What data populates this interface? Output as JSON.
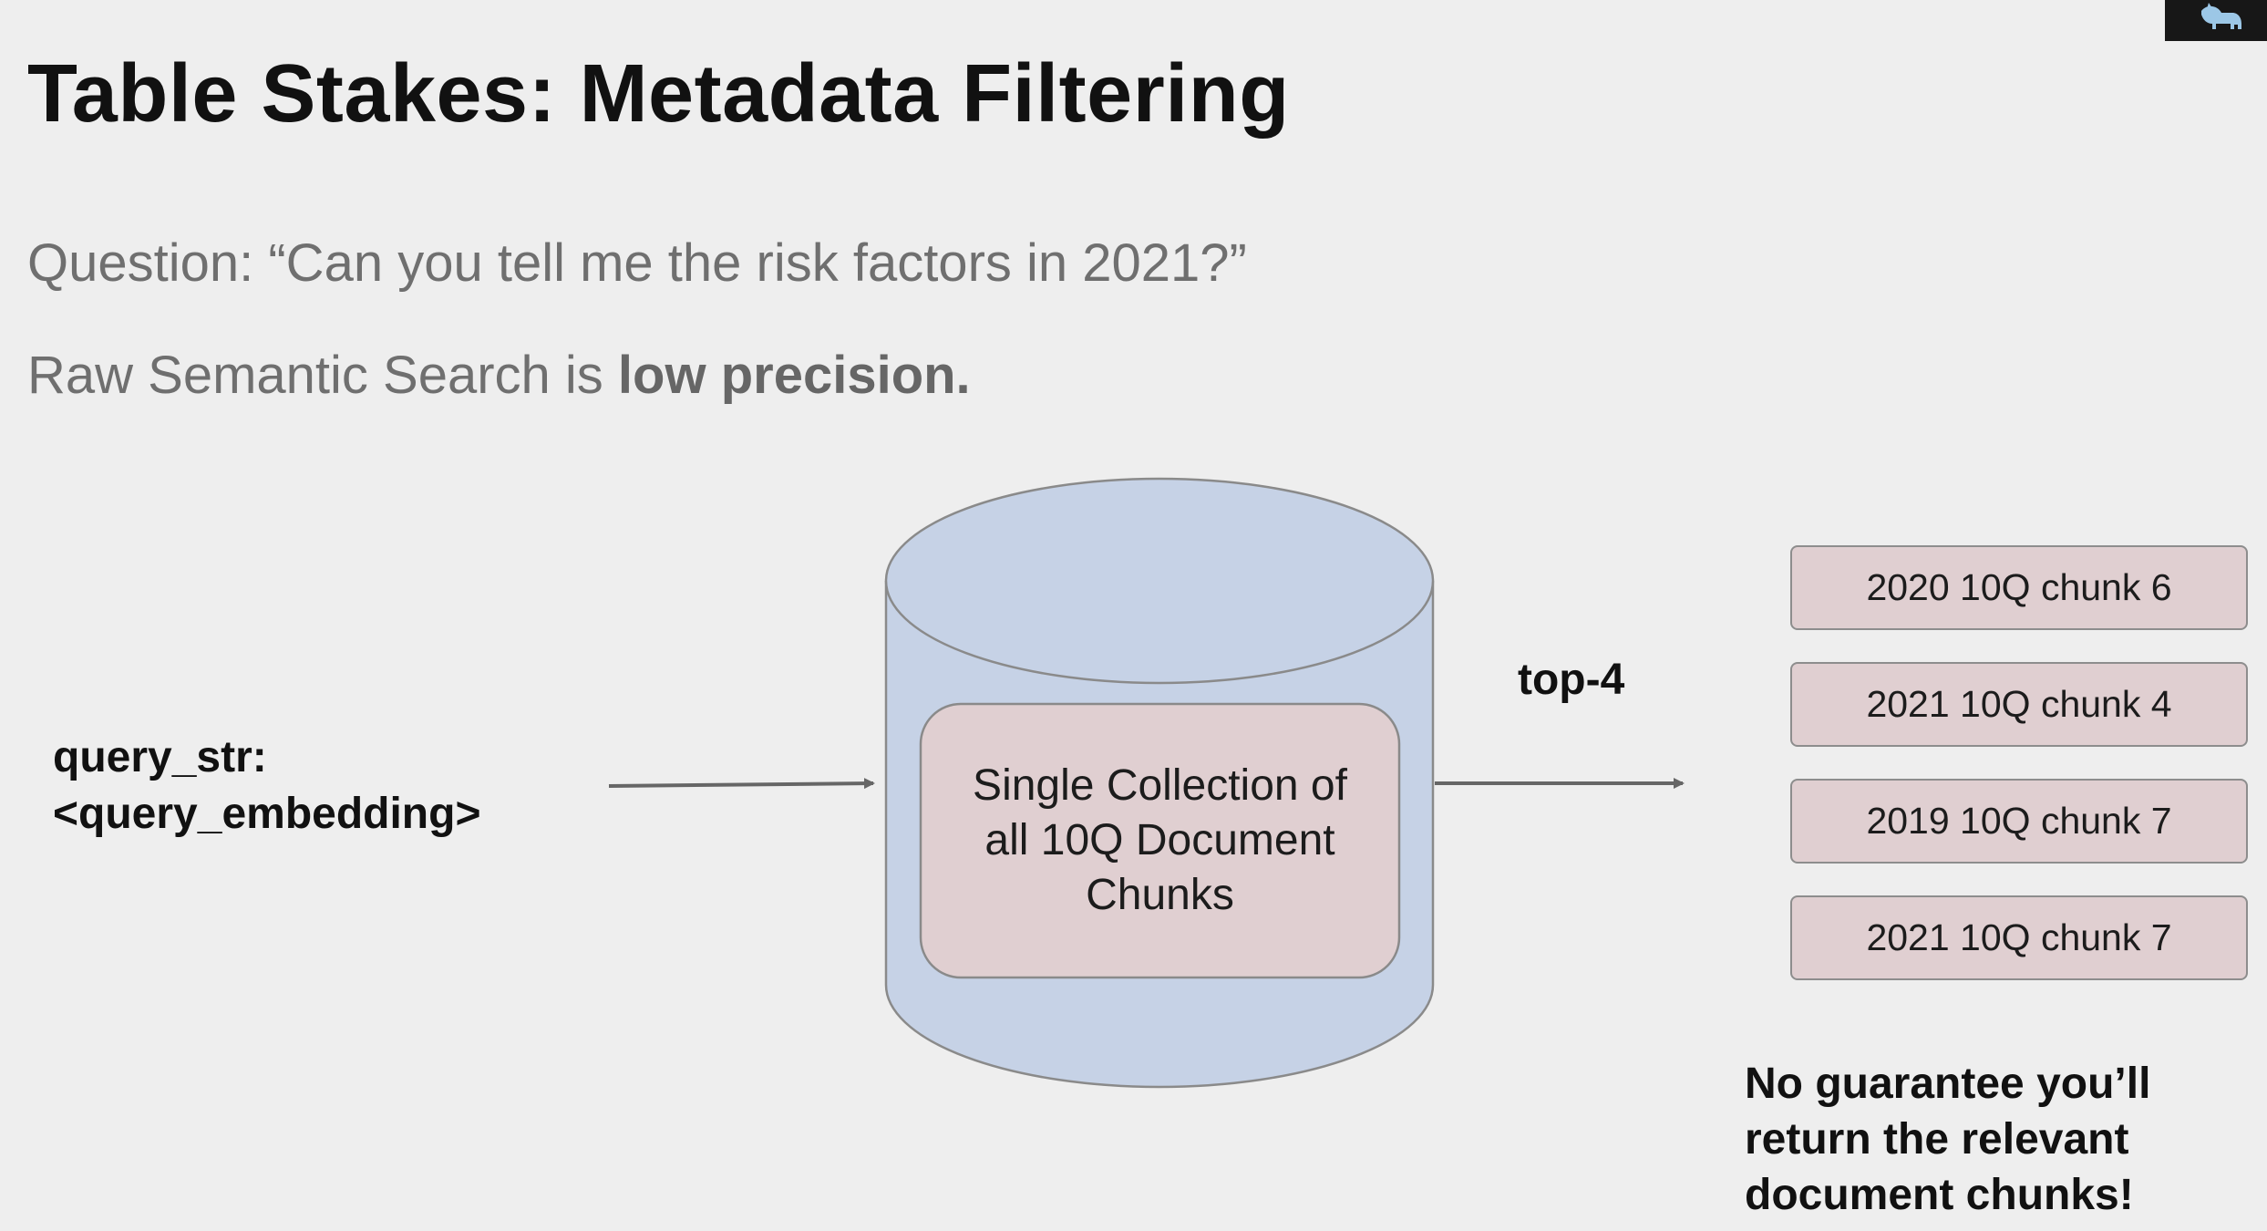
{
  "slide": {
    "title": "Table Stakes: Metadata Filtering",
    "question": "Question: “Can you tell me the risk factors in 2021?”",
    "semantic_prefix": "Raw Semantic Search is ",
    "semantic_emphasis": "low precision."
  },
  "diagram": {
    "query_lines": [
      "query_str:",
      "<query_embedding>"
    ],
    "database_label": "Single Collection of all 10Q Document Chunks",
    "topk_label": "top-4",
    "chunks": [
      "2020 10Q chunk 6",
      "2021 10Q chunk 4",
      "2019 10Q chunk 7",
      "2021 10Q chunk 7"
    ],
    "note_lines": [
      "No guarantee you’ll",
      "return the relevant",
      "document chunks!"
    ]
  },
  "colors": {
    "background": "#eeeeee",
    "cylinder_fill": "#c6d2e6",
    "chunk_fill": "#e0cfd1",
    "outline": "#8a8a8a",
    "arrow": "#666666"
  },
  "icons": {
    "corner": "logo-icon"
  }
}
